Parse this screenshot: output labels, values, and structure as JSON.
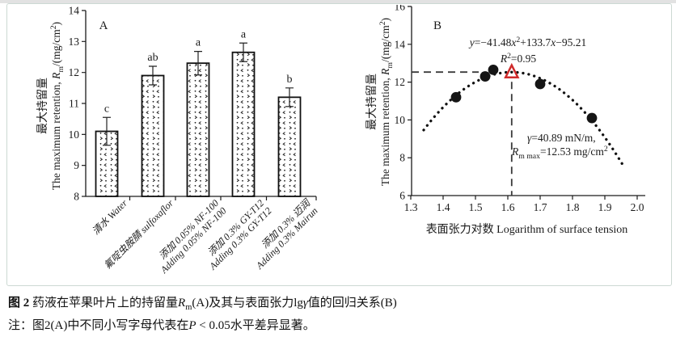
{
  "window": {
    "top_strip_color": "#e2e2e2",
    "panel_border_color": "#ccd9d3",
    "background": "#ffffff",
    "ink_color": "#1a1a1a"
  },
  "chart_data": [
    {
      "type": "bar",
      "panel_label": "A",
      "ylabel_zh": "最大持留量",
      "ylabel_en_segs": [
        {
          "t": "The maximum retention, "
        },
        {
          "t": "R",
          "i": true
        },
        {
          "t": "m",
          "sub": true
        },
        {
          "t": "/(mg/cm"
        },
        {
          "t": "2",
          "sup": true
        },
        {
          "t": ")"
        }
      ],
      "ylim": [
        8,
        14
      ],
      "yticks": [
        8,
        9,
        10,
        11,
        12,
        13,
        14
      ],
      "categories": [
        {
          "lines": [
            "清水 Water"
          ]
        },
        {
          "lines": [
            "氟啶虫胺腈 sulfoxaflor"
          ]
        },
        {
          "lines": [
            "添加 0.05% NF-100",
            "Adding 0.05% NF-100"
          ]
        },
        {
          "lines": [
            "添加 0.3% GY-T12",
            "Adding 0.3% GY-T12"
          ]
        },
        {
          "lines": [
            "添加 0.3% 迈润",
            "Adding 0.3% Mairun"
          ]
        }
      ],
      "values": [
        10.1,
        11.9,
        12.3,
        12.65,
        11.2
      ],
      "errors": [
        0.45,
        0.3,
        0.38,
        0.3,
        0.3
      ],
      "sig_letters": [
        "c",
        "ab",
        "a",
        "a",
        "b"
      ],
      "grid": false
    },
    {
      "type": "scatter",
      "panel_label": "B",
      "xlabel": "表面张力对数 Logarithm of surface tension",
      "ylabel_zh": "最大持留量",
      "ylabel_en_segs": [
        {
          "t": "The maximum retention, "
        },
        {
          "t": "R",
          "i": true
        },
        {
          "t": "m",
          "sub": true
        },
        {
          "t": "/(mg/cm"
        },
        {
          "t": "2",
          "sup": true
        },
        {
          "t": ")"
        }
      ],
      "xlim": [
        1.3,
        2.0
      ],
      "xticks": [
        "1.3",
        "1.4",
        "1.5",
        "1.6",
        "1.7",
        "1.8",
        "1.9",
        "2.0"
      ],
      "ylim": [
        6,
        16
      ],
      "yticks": [
        6,
        8,
        10,
        12,
        14,
        16
      ],
      "points": [
        {
          "x": 1.44,
          "y": 11.2
        },
        {
          "x": 1.53,
          "y": 12.3
        },
        {
          "x": 1.555,
          "y": 12.65
        },
        {
          "x": 1.7,
          "y": 11.9
        },
        {
          "x": 1.86,
          "y": 10.1
        }
      ],
      "fit_curve": {
        "a": -41.48,
        "b": 133.7,
        "c": -95.21,
        "x_range": [
          1.34,
          1.96
        ]
      },
      "vertex": {
        "x": 1.612,
        "y": 12.53
      },
      "equation_segs": [
        {
          "t": "y",
          "i": true
        },
        {
          "t": "=−41.48"
        },
        {
          "t": "x",
          "i": true
        },
        {
          "t": "2",
          "sup": true
        },
        {
          "t": "+133.7"
        },
        {
          "t": "x",
          "i": true
        },
        {
          "t": "−95.21"
        }
      ],
      "r2_segs": [
        {
          "t": "R",
          "i": true
        },
        {
          "t": "2",
          "sup": true
        },
        {
          "t": "=0.95"
        }
      ],
      "gamma_segs": [
        {
          "t": "γ",
          "i": true
        },
        {
          "t": "=40.89 mN/m,"
        }
      ],
      "rmax_segs": [
        {
          "t": "R",
          "i": true
        },
        {
          "t": "m max",
          "sub": true
        },
        {
          "t": "=12.53 mg/cm"
        },
        {
          "t": "2",
          "sup": true
        }
      ],
      "marker_color": "#151515",
      "vertex_color": "#cf2b2b",
      "dash_color": "#3a3a3a",
      "grid": false,
      "legend": "none"
    }
  ],
  "caption": {
    "line1_segs": [
      {
        "t": "图 2  ",
        "b": true
      },
      {
        "t": "药液在苹果叶片上的持留量"
      },
      {
        "t": "R",
        "i": true
      },
      {
        "t": "m",
        "sub": true
      },
      {
        "t": "(A)及其与表面张力lg"
      },
      {
        "t": "γ",
        "i": true
      },
      {
        "t": "值的回归关系(B)"
      }
    ],
    "line2_segs": [
      {
        "t": "注："
      },
      {
        "t": "图2(A)中不同小写字母代表在"
      },
      {
        "t": "P",
        "i": true
      },
      {
        "t": " < 0.05水平差异显著。"
      }
    ]
  }
}
